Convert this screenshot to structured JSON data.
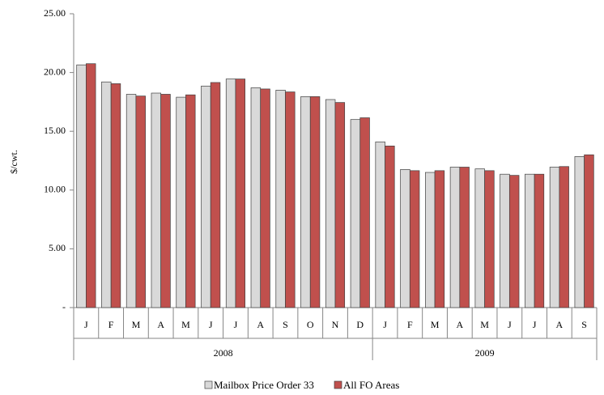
{
  "chart_data": {
    "type": "bar",
    "y_label": "$/cwt.",
    "groups": [
      {
        "label": "2008",
        "categories": [
          "J",
          "F",
          "M",
          "A",
          "M",
          "J",
          "J",
          "A",
          "S",
          "O",
          "N",
          "D"
        ]
      },
      {
        "label": "2009",
        "categories": [
          "J",
          "F",
          "M",
          "A",
          "M",
          "J",
          "J",
          "A",
          "S"
        ]
      }
    ],
    "series": [
      {
        "name": "Mailbox Price Order 33",
        "color": "#d9d9d9",
        "values": [
          20.65,
          19.2,
          18.15,
          18.25,
          17.9,
          18.85,
          19.45,
          18.7,
          18.5,
          17.95,
          17.7,
          16.0,
          14.1,
          11.75,
          11.5,
          11.95,
          11.8,
          11.35,
          11.35,
          11.95,
          12.85
        ]
      },
      {
        "name": "All FO Areas",
        "color": "#c0504d",
        "values": [
          20.75,
          19.05,
          18.0,
          18.15,
          18.1,
          19.15,
          19.45,
          18.6,
          18.35,
          17.95,
          17.45,
          16.15,
          13.75,
          11.65,
          11.65,
          11.95,
          11.65,
          11.25,
          11.35,
          12.0,
          13.0
        ]
      }
    ],
    "ylim": [
      0,
      25
    ],
    "yticks": [
      {
        "value": 0,
        "label": "-"
      },
      {
        "value": 5,
        "label": "5.00"
      },
      {
        "value": 10,
        "label": "10.00"
      },
      {
        "value": 15,
        "label": "15.00"
      },
      {
        "value": 20,
        "label": "20.00"
      },
      {
        "value": 25,
        "label": "25.00"
      }
    ],
    "grid": false,
    "legend": "bottom"
  }
}
